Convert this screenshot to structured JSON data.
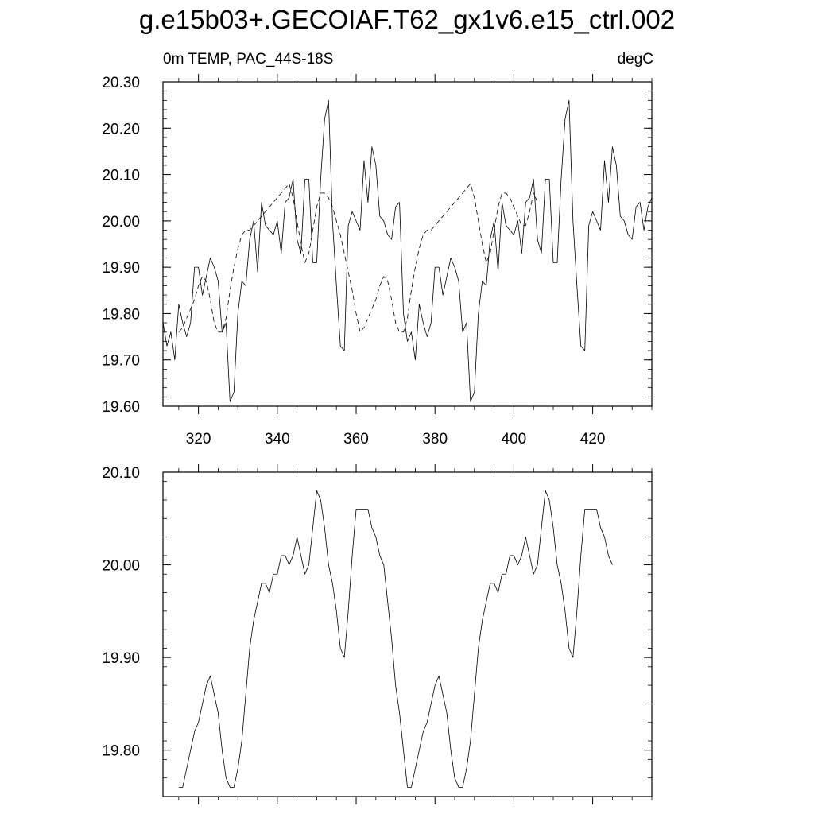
{
  "title": "g.e15b03+.GECOIAF.T62_gx1v6.e15_ctrl.002",
  "subtitle_left": "0m TEMP, PAC_44S-18S",
  "subtitle_right": "degC",
  "chart_data": [
    {
      "type": "line",
      "xlim": [
        311,
        435
      ],
      "ylim": [
        19.6,
        20.3
      ],
      "x_ticks": [
        320,
        340,
        360,
        380,
        400,
        420
      ],
      "x_tick_labels": [
        "320",
        "340",
        "360",
        "380",
        "400",
        "420"
      ],
      "y_ticks": [
        19.6,
        19.7,
        19.8,
        19.9,
        20.0,
        20.1,
        20.2,
        20.3
      ],
      "y_tick_labels": [
        "19.60",
        "19.70",
        "19.80",
        "19.90",
        "20.00",
        "20.10",
        "20.20",
        "20.30"
      ],
      "grid": false,
      "series": [
        {
          "style": "solid",
          "x_start": 311,
          "values": [
            19.78,
            19.73,
            19.76,
            19.7,
            19.82,
            19.78,
            19.75,
            19.78,
            19.9,
            19.9,
            19.84,
            19.88,
            19.92,
            19.9,
            19.87,
            19.76,
            19.78,
            19.61,
            19.63,
            19.8,
            19.87,
            19.86,
            19.96,
            20.0,
            19.89,
            20.04,
            19.99,
            19.98,
            19.97,
            20.0,
            19.93,
            20.04,
            20.05,
            20.09,
            19.96,
            19.93,
            20.09,
            20.09,
            19.91,
            19.91,
            20.09,
            20.22,
            20.26,
            20.0,
            19.86,
            19.73,
            19.72,
            19.99,
            20.02,
            20.0,
            19.98,
            20.13,
            20.04,
            20.16,
            20.12,
            20.01,
            20.0,
            19.97,
            19.96,
            20.03,
            20.04,
            19.8,
            19.74,
            19.76,
            19.7,
            19.82,
            19.78,
            19.75,
            19.78,
            19.9,
            19.9,
            19.84,
            19.88,
            19.92,
            19.9,
            19.87,
            19.76,
            19.78,
            19.61,
            19.63,
            19.8,
            19.87,
            19.86,
            19.96,
            20.0,
            19.89,
            20.04,
            19.99,
            19.98,
            19.97,
            20.0,
            19.93,
            20.04,
            20.05,
            20.09,
            19.96,
            19.93,
            20.09,
            20.09,
            19.91,
            19.91,
            20.09,
            20.22,
            20.26,
            20.0,
            19.86,
            19.73,
            19.72,
            19.99,
            20.02,
            20.0,
            19.98,
            20.13,
            20.04,
            20.16,
            20.12,
            20.01,
            20.0,
            19.97,
            19.96,
            20.03,
            20.04,
            19.98,
            20.03,
            20.05
          ]
        },
        {
          "style": "dashed",
          "x_start": 315,
          "values": [
            19.76,
            19.77,
            19.79,
            19.81,
            19.83,
            19.86,
            19.88,
            19.87,
            19.83,
            19.78,
            19.76,
            19.76,
            19.79,
            19.85,
            19.9,
            19.94,
            19.97,
            19.98,
            19.98,
            19.99,
            20.0,
            20.01,
            20.02,
            20.03,
            20.04,
            20.05,
            20.06,
            20.07,
            20.08,
            20.05,
            20.0,
            19.95,
            19.91,
            19.93,
            19.98,
            20.03,
            20.06,
            20.06,
            20.05,
            20.03,
            20.0,
            19.97,
            19.93,
            19.89,
            19.85,
            19.8,
            19.76,
            19.77,
            19.79,
            19.81,
            19.83,
            19.86,
            19.88,
            19.87,
            19.83,
            19.78,
            19.76,
            19.76,
            19.79,
            19.85,
            19.9,
            19.94,
            19.97,
            19.98,
            19.98,
            19.99,
            20.0,
            20.01,
            20.02,
            20.03,
            20.04,
            20.05,
            20.06,
            20.07,
            20.08,
            20.05,
            20.0,
            19.95,
            19.91,
            19.93,
            19.98,
            20.03,
            20.06,
            20.06,
            20.05,
            20.03,
            20.01,
            19.99,
            19.99,
            20.02,
            20.06,
            20.04
          ]
        }
      ]
    },
    {
      "type": "line",
      "xlim": [
        311,
        435
      ],
      "ylim": [
        19.75,
        20.1
      ],
      "x_ticks": [
        320,
        340,
        360,
        380,
        400,
        420
      ],
      "x_tick_labels": [],
      "y_ticks": [
        19.8,
        19.9,
        20.0,
        20.1
      ],
      "y_tick_labels": [
        "19.80",
        "19.90",
        "20.00",
        "20.10"
      ],
      "grid": false,
      "series": [
        {
          "style": "solid",
          "x_start": 315,
          "values": [
            19.76,
            19.76,
            19.78,
            19.8,
            19.82,
            19.83,
            19.85,
            19.87,
            19.88,
            19.86,
            19.84,
            19.8,
            19.77,
            19.76,
            19.76,
            19.78,
            19.81,
            19.86,
            19.91,
            19.94,
            19.96,
            19.98,
            19.98,
            19.97,
            19.99,
            19.99,
            20.01,
            20.01,
            20.0,
            20.01,
            20.03,
            20.01,
            19.99,
            20.0,
            20.04,
            20.08,
            20.07,
            20.04,
            20.0,
            19.98,
            19.95,
            19.91,
            19.9,
            19.95,
            20.01,
            20.06,
            20.06,
            20.06,
            20.06,
            20.04,
            20.03,
            20.01,
            20.0,
            19.96,
            19.92,
            19.87,
            19.84,
            19.8,
            19.76,
            19.76,
            19.78,
            19.8,
            19.82,
            19.83,
            19.85,
            19.87,
            19.88,
            19.86,
            19.84,
            19.8,
            19.77,
            19.76,
            19.76,
            19.78,
            19.81,
            19.86,
            19.91,
            19.94,
            19.96,
            19.98,
            19.98,
            19.97,
            19.99,
            19.99,
            20.01,
            20.01,
            20.0,
            20.01,
            20.03,
            20.01,
            19.99,
            20.0,
            20.04,
            20.08,
            20.07,
            20.04,
            20.0,
            19.98,
            19.95,
            19.91,
            19.9,
            19.95,
            20.01,
            20.06,
            20.06,
            20.06,
            20.06,
            20.04,
            20.03,
            20.01,
            20.0
          ]
        }
      ]
    }
  ]
}
